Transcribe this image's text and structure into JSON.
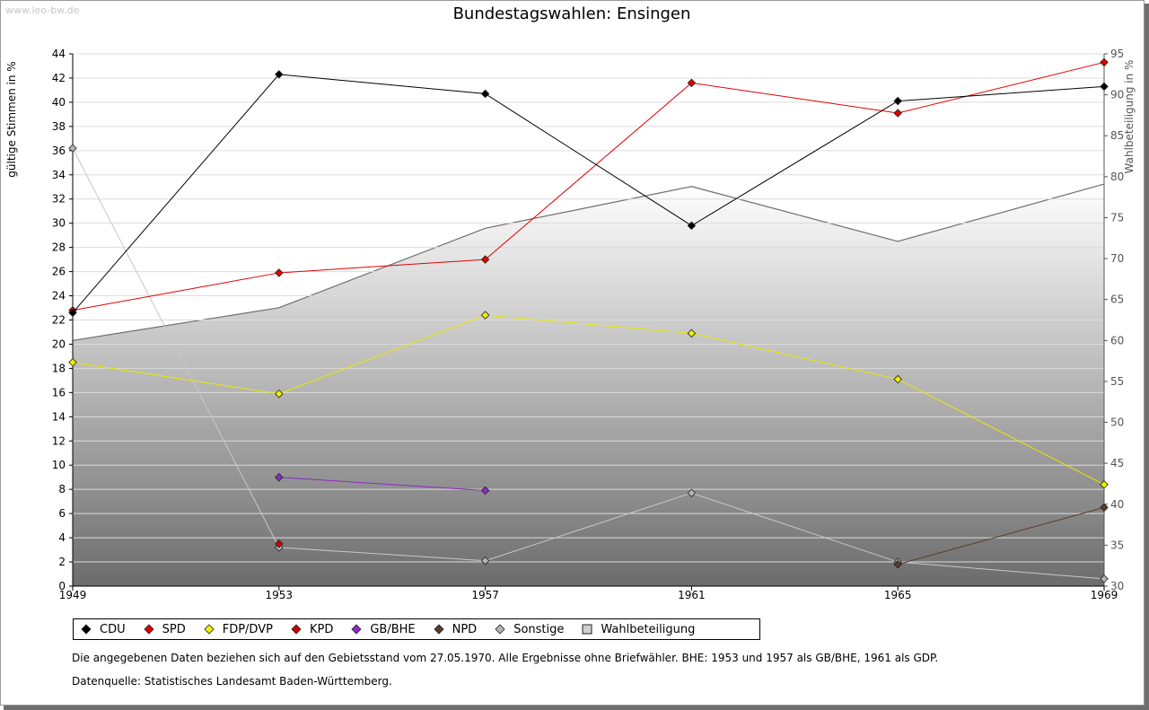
{
  "watermark": "www.leo-bw.de",
  "chart_data": {
    "type": "line",
    "title": "Bundestagswahlen: Ensingen",
    "ylabel": "gültige Stimmen in %",
    "ylabel_right": "Wahlbeteiligung in %",
    "xlabel": "",
    "x": [
      1949,
      1953,
      1957,
      1961,
      1965,
      1969
    ],
    "x_ticks": [
      "1949",
      "1953",
      "1957",
      "1961",
      "1965",
      "1969"
    ],
    "ylim": [
      0,
      44
    ],
    "ylim_right": [
      30,
      95
    ],
    "y_ticks": [
      "0",
      "2",
      "4",
      "6",
      "8",
      "10",
      "12",
      "14",
      "16",
      "18",
      "20",
      "22",
      "24",
      "26",
      "28",
      "30",
      "32",
      "34",
      "36",
      "38",
      "40",
      "42",
      "44"
    ],
    "y_ticks_right": [
      "30",
      "35",
      "40",
      "45",
      "50",
      "55",
      "60",
      "65",
      "70",
      "75",
      "80",
      "85",
      "90",
      "95"
    ],
    "grid": true,
    "legend_position": "bottom",
    "series": [
      {
        "name": "CDU",
        "color": "#000000",
        "axis": "left",
        "values": [
          22.6,
          42.3,
          40.7,
          29.8,
          40.1,
          41.3
        ]
      },
      {
        "name": "SPD",
        "color": "#e00000",
        "axis": "left",
        "values": [
          22.8,
          25.9,
          27.0,
          41.6,
          39.1,
          43.3
        ]
      },
      {
        "name": "FDP/DVP",
        "color": "#f0f000",
        "axis": "left",
        "values": [
          18.5,
          15.9,
          22.4,
          20.9,
          17.1,
          8.4
        ]
      },
      {
        "name": "KPD",
        "color": "#cc0000",
        "axis": "left",
        "values": [
          null,
          3.5,
          null,
          null,
          null,
          null
        ]
      },
      {
        "name": "GB/BHE",
        "color": "#8a2bc2",
        "axis": "left",
        "values": [
          null,
          9.0,
          7.9,
          null,
          null,
          null
        ]
      },
      {
        "name": "NPD",
        "color": "#5a3a2a",
        "axis": "left",
        "values": [
          null,
          null,
          null,
          null,
          1.8,
          6.5
        ]
      },
      {
        "name": "Sonstige",
        "color": "#b4b4b4",
        "axis": "left",
        "values": [
          36.2,
          3.2,
          2.1,
          7.7,
          2.0,
          0.6
        ]
      },
      {
        "name": "Wahlbeteiligung",
        "color": "#6e6e6e",
        "axis": "right",
        "type": "area",
        "values": [
          60.0,
          64.0,
          73.7,
          78.8,
          72.1,
          79.1
        ]
      }
    ]
  },
  "legend": [
    {
      "label": "CDU",
      "color": "#000000",
      "shape": "diamond"
    },
    {
      "label": "SPD",
      "color": "#e00000",
      "shape": "diamond"
    },
    {
      "label": "FDP/DVP",
      "color": "#f0f000",
      "shape": "diamond"
    },
    {
      "label": "KPD",
      "color": "#cc0000",
      "shape": "diamond"
    },
    {
      "label": "GB/BHE",
      "color": "#8a2bc2",
      "shape": "diamond"
    },
    {
      "label": "NPD",
      "color": "#5a3a2a",
      "shape": "diamond"
    },
    {
      "label": "Sonstige",
      "color": "#b4b4b4",
      "shape": "diamond"
    },
    {
      "label": "Wahlbeteiligung",
      "color": "#cfcfcf",
      "shape": "square"
    }
  ],
  "notes": {
    "line1": "Die angegebenen Daten beziehen sich auf den Gebietsstand vom 27.05.1970. Alle Ergebnisse ohne Briefwähler. BHE: 1953 und 1957 als GB/BHE, 1961 als GDP.",
    "line2": "Datenquelle: Statistisches Landesamt Baden-Württemberg."
  }
}
